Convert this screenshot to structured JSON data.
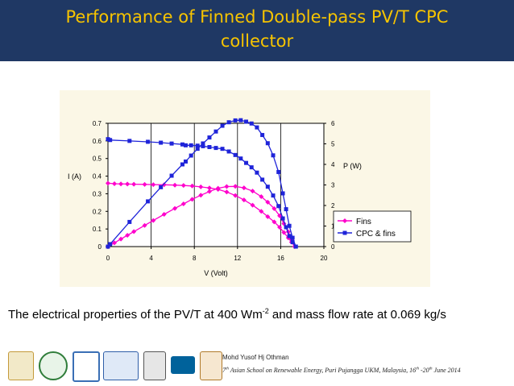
{
  "slide": {
    "title_line1": "Performance of Finned Double-pass PV/T CPC",
    "title_line2": "collector",
    "caption_pre": "The electrical properties of the PV/T at 400 Wm",
    "caption_sup": "-2",
    "caption_post": " and mass flow rate at 0.069 kg/s"
  },
  "footer": {
    "author": "Mohd Yusof Hj Othman",
    "event_pre": "7",
    "event_sup1": "th",
    "event_mid": " Asian School on Renewable Energy, Puri Pujangga UKM, Malaysia, 16",
    "event_sup2": "th",
    "event_dash": " -20",
    "event_sup3": "th",
    "event_post": " June 2014",
    "logos": [
      "crest-logo",
      "round-seal-logo",
      "hexagon-logo",
      "ser-logo",
      "unesco-logo",
      "ieee-logo",
      "akademi-sains-logo"
    ]
  },
  "colors": {
    "title_band": "#1f3864",
    "title_text": "#f7c400",
    "plot_area": "#ffffff",
    "chart_background": "#fbf7e6",
    "fins": "#ff00cc",
    "cpc_fins": "#1f24d9"
  },
  "chart_data": {
    "type": "line",
    "xlabel": "V (Volt)",
    "ylabel_left": "I (A)",
    "ylabel_right": "P (W)",
    "xlim": [
      0,
      20
    ],
    "ylim_left": [
      0,
      0.7
    ],
    "ylim_right": [
      0,
      6
    ],
    "x_ticks": [
      "0",
      "4",
      "8",
      "12",
      "16",
      "20"
    ],
    "y_left_ticks": [
      "0",
      "0.1",
      "0.2",
      "0.3",
      "0.4",
      "0.5",
      "0.6",
      "0.7"
    ],
    "y_right_ticks": [
      "0",
      "1",
      "2",
      "3",
      "4",
      "5",
      "6"
    ],
    "grid": "vertical",
    "legend_position": "bottom-right",
    "legend": [
      "Fins",
      "CPC & fins"
    ],
    "series": [
      {
        "name": "Fins",
        "axis": "left",
        "marker": "diamond",
        "x": [
          0,
          0.6,
          1.2,
          1.8,
          2.4,
          3.4,
          4.2,
          5.2,
          6.2,
          7.0,
          7.8,
          8.6,
          9.4,
          10.2,
          11.0,
          11.8,
          12.6,
          13.4,
          14.2,
          14.8,
          15.4,
          15.9,
          16.3,
          16.7,
          17.0,
          17.3
        ],
        "y": [
          0.36,
          0.357,
          0.356,
          0.355,
          0.354,
          0.353,
          0.352,
          0.351,
          0.349,
          0.347,
          0.344,
          0.339,
          0.333,
          0.325,
          0.31,
          0.29,
          0.265,
          0.235,
          0.2,
          0.17,
          0.14,
          0.11,
          0.08,
          0.05,
          0.025,
          0
        ]
      },
      {
        "name": "Fins",
        "axis": "right",
        "marker": "diamond",
        "x": [
          0,
          0.6,
          1.2,
          1.8,
          2.4,
          3.4,
          4.2,
          5.2,
          6.2,
          7.0,
          7.8,
          8.6,
          9.4,
          10.2,
          11.0,
          11.8,
          12.6,
          13.4,
          14.2,
          14.8,
          15.4,
          15.9,
          16.3,
          16.7,
          17.0,
          17.3
        ],
        "y": [
          0,
          0.18,
          0.37,
          0.55,
          0.73,
          1.03,
          1.27,
          1.57,
          1.86,
          2.08,
          2.3,
          2.5,
          2.68,
          2.84,
          2.92,
          2.93,
          2.86,
          2.7,
          2.43,
          2.16,
          1.85,
          1.5,
          1.12,
          0.72,
          0.36,
          0
        ]
      },
      {
        "name": "CPC & fins",
        "axis": "left",
        "marker": "square",
        "x": [
          0,
          0.2,
          2,
          3.7,
          4.9,
          5.9,
          6.9,
          7.2,
          7.7,
          8.3,
          8.8,
          9.4,
          10.0,
          10.6,
          11.2,
          11.8,
          12.3,
          12.8,
          13.3,
          13.8,
          14.3,
          14.8,
          15.3,
          15.8,
          16.2,
          16.5,
          16.8,
          17.1,
          17.4
        ],
        "y": [
          0.61,
          0.605,
          0.6,
          0.595,
          0.59,
          0.585,
          0.58,
          0.575,
          0.575,
          0.573,
          0.57,
          0.565,
          0.56,
          0.555,
          0.54,
          0.52,
          0.5,
          0.475,
          0.45,
          0.42,
          0.38,
          0.34,
          0.29,
          0.23,
          0.16,
          0.11,
          0.06,
          0.025,
          0
        ]
      },
      {
        "name": "CPC & fins",
        "axis": "right",
        "marker": "square",
        "x": [
          0,
          0.2,
          2,
          3.7,
          4.9,
          5.9,
          6.9,
          7.2,
          7.7,
          8.3,
          8.8,
          9.4,
          10.0,
          10.6,
          11.2,
          11.8,
          12.3,
          12.8,
          13.3,
          13.8,
          14.3,
          14.8,
          15.3,
          15.8,
          16.2,
          16.5,
          16.8,
          17.1,
          17.4
        ],
        "y": [
          0,
          0.12,
          1.2,
          2.2,
          2.89,
          3.45,
          4.0,
          4.14,
          4.43,
          4.76,
          5.02,
          5.31,
          5.6,
          5.88,
          6.05,
          6.14,
          6.15,
          6.08,
          5.99,
          5.8,
          5.43,
          5.03,
          4.44,
          3.63,
          2.59,
          1.82,
          1.01,
          0.43,
          0
        ]
      }
    ]
  }
}
